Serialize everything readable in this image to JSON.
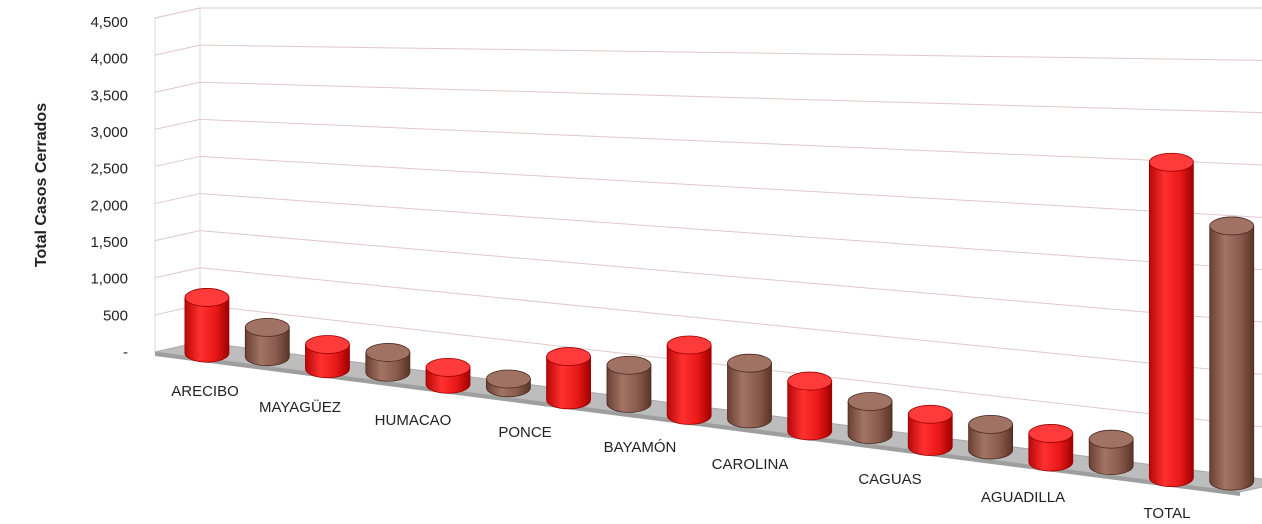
{
  "chart_data": {
    "type": "bar",
    "style": "3d-cylinder",
    "ylabel": "Total Casos Cerrados",
    "xlabel": "",
    "ylim": [
      0,
      4500
    ],
    "yticks": [
      {
        "value": 0,
        "label": "-"
      },
      {
        "value": 500,
        "label": "500"
      },
      {
        "value": 1000,
        "label": "1,000"
      },
      {
        "value": 1500,
        "label": "1,500"
      },
      {
        "value": 2000,
        "label": "2,000"
      },
      {
        "value": 2500,
        "label": "2,500"
      },
      {
        "value": 3000,
        "label": "3,000"
      },
      {
        "value": 3500,
        "label": "3,500"
      },
      {
        "value": 4000,
        "label": "4,000"
      },
      {
        "value": 4500,
        "label": "4,500"
      }
    ],
    "grid": true,
    "legend": "none",
    "categories": [
      "ARECIBO",
      "MAYAGÜEZ",
      "HUMACAO",
      "PONCE",
      "BAYAMÓN",
      "CAROLINA",
      "CAGUAS",
      "AGUADILLA",
      "TOTAL"
    ],
    "series": [
      {
        "color": "#ee1c1c",
        "values": [
          760,
          330,
          230,
          590,
          960,
          680,
          440,
          390,
          4300
        ]
      },
      {
        "color": "#8a5a4c",
        "values": [
          400,
          270,
          120,
          520,
          760,
          450,
          350,
          360,
          3480
        ]
      }
    ]
  }
}
